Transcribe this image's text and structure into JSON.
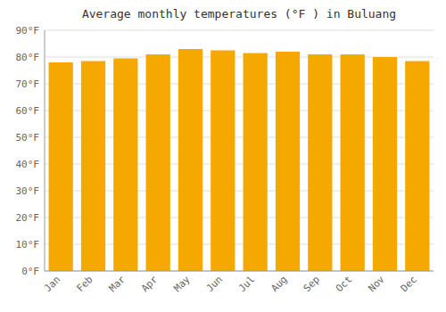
{
  "chart_data": {
    "type": "bar",
    "title": "Average monthly temperatures (°F ) in Buluang",
    "categories": [
      "Jan",
      "Feb",
      "Mar",
      "Apr",
      "May",
      "Jun",
      "Jul",
      "Aug",
      "Sep",
      "Oct",
      "Nov",
      "Dec"
    ],
    "values": [
      78,
      78.5,
      79.5,
      81,
      83,
      82.5,
      81.5,
      82,
      81,
      81,
      80,
      78.5
    ],
    "color": "#F5A800",
    "ylim": [
      0,
      90
    ],
    "yticks": [
      {
        "value": 0,
        "label": "0°F"
      },
      {
        "value": 10,
        "label": "10°F"
      },
      {
        "value": 20,
        "label": "20°F"
      },
      {
        "value": 30,
        "label": "30°F"
      },
      {
        "value": 40,
        "label": "40°F"
      },
      {
        "value": 50,
        "label": "50°F"
      },
      {
        "value": 60,
        "label": "60°F"
      },
      {
        "value": 70,
        "label": "70°F"
      },
      {
        "value": 80,
        "label": "80°F"
      },
      {
        "value": 90,
        "label": "90°F"
      }
    ],
    "grid": true
  }
}
